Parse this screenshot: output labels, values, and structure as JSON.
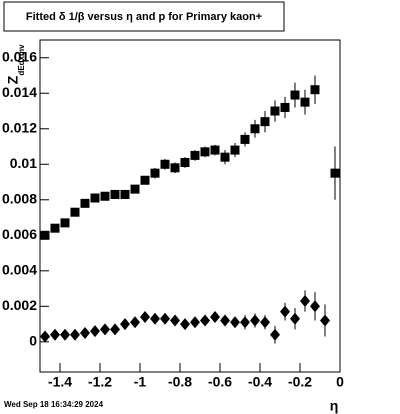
{
  "chart_data": {
    "type": "scatter",
    "title": "Fitted δ 1/β versus η and p for Primary kaon+",
    "xlabel": "η",
    "ylabel": "Z",
    "ylabel_sub": "dEdxmv",
    "footer": "Wed Sep 18 16:34:29 2024",
    "x": [
      -1.475,
      -1.425,
      -1.375,
      -1.325,
      -1.275,
      -1.225,
      -1.175,
      -1.125,
      -1.075,
      -1.025,
      -0.975,
      -0.925,
      -0.875,
      -0.825,
      -0.775,
      -0.725,
      -0.675,
      -0.625,
      -0.575,
      -0.525,
      -0.475,
      -0.425,
      -0.375,
      -0.325,
      -0.275,
      -0.225,
      -0.175,
      -0.125,
      -0.075,
      -0.025
    ],
    "series": [
      {
        "marker": "square",
        "color": "#000000",
        "values": [
          0.006,
          0.0064,
          0.0067,
          0.0073,
          0.0078,
          0.0081,
          0.0082,
          0.0083,
          0.0083,
          0.0086,
          0.0091,
          0.0095,
          0.01,
          0.0098,
          0.0101,
          0.0105,
          0.0107,
          0.0108,
          0.0104,
          0.0108,
          0.0114,
          0.012,
          0.0124,
          0.013,
          0.0132,
          0.0139,
          0.0135,
          0.0142,
          null,
          0.0095
        ],
        "errors": [
          0.0002,
          0.0002,
          0.0002,
          0.0002,
          0.0002,
          0.0002,
          0.0002,
          0.0002,
          0.0002,
          0.0002,
          0.0002,
          0.0003,
          0.0003,
          0.0003,
          0.0003,
          0.0003,
          0.0003,
          0.0003,
          0.0004,
          0.0004,
          0.0004,
          0.0005,
          0.0006,
          0.0006,
          0.0006,
          0.0007,
          0.0007,
          0.0008,
          null,
          0.0015
        ]
      },
      {
        "marker": "diamond",
        "color": "#000000",
        "values": [
          0.0003,
          0.0004,
          0.0004,
          0.0004,
          0.0005,
          0.0006,
          0.0007,
          0.0007,
          0.001,
          0.0011,
          0.0014,
          0.0013,
          0.0013,
          0.0012,
          0.001,
          0.0011,
          0.0012,
          0.0014,
          0.0012,
          0.0011,
          0.0011,
          0.0012,
          0.0011,
          0.0004,
          0.0017,
          0.0013,
          0.0023,
          0.002,
          0.0012,
          null
        ],
        "errors": [
          0.0002,
          0.0002,
          0.0002,
          0.0002,
          0.0002,
          0.0002,
          0.0002,
          0.0002,
          0.0002,
          0.0002,
          0.0002,
          0.0002,
          0.0002,
          0.0002,
          0.0002,
          0.0002,
          0.0003,
          0.0003,
          0.0003,
          0.0003,
          0.0004,
          0.0004,
          0.0004,
          0.0005,
          0.0005,
          0.0006,
          0.0006,
          0.0008,
          0.0009,
          null
        ]
      }
    ],
    "xlim": [
      -1.5,
      0
    ],
    "xticks": [
      -1.4,
      -1.2,
      -1,
      -0.8,
      -0.6,
      -0.4,
      -0.2,
      0
    ],
    "ylim": [
      -0.0017,
      0.017
    ],
    "yticks": [
      0,
      0.002,
      0.004,
      0.006,
      0.008,
      0.01,
      0.012,
      0.014,
      0.016
    ]
  }
}
